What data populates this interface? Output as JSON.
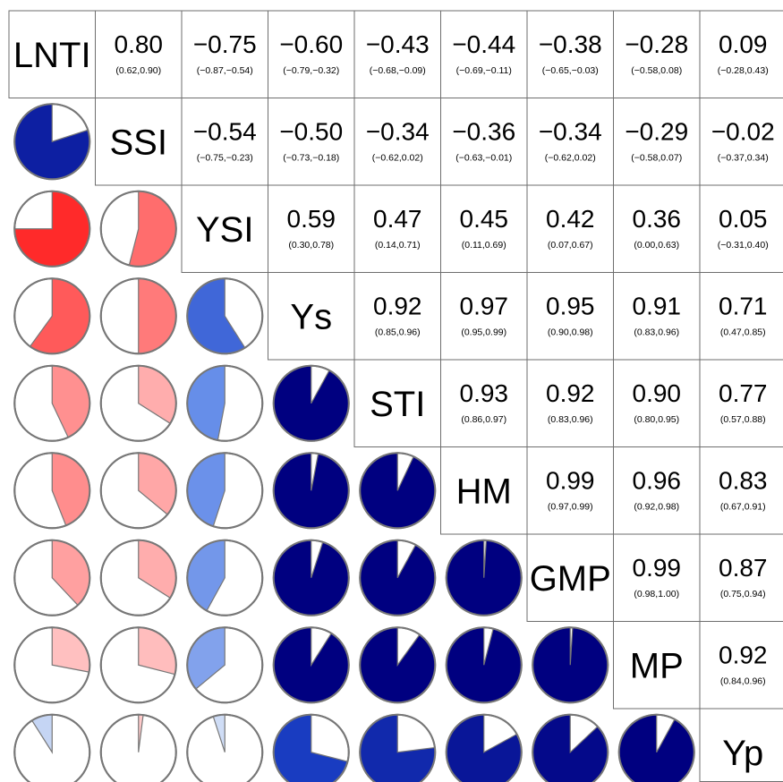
{
  "chart_data": {
    "type": "heatmap",
    "variables": [
      "LNTI",
      "SSI",
      "YSI",
      "Ys",
      "STI",
      "HM",
      "GMP",
      "MP",
      "Yp"
    ],
    "upper_panel": "correlation coefficient with 95% confidence interval",
    "lower_panel": "pie filled in proportion to |r|; blue = positive, red = negative",
    "colors": {
      "strong_positive": "#000080",
      "moderate_positive": "#1a3fc4",
      "weak_positive": "#dbe6f7",
      "strong_negative": "#ff1a1a",
      "weak_negative": "#ffcaca",
      "cell_border": "#6e6e6e"
    },
    "correlations": [
      {
        "row": "LNTI",
        "col": "SSI",
        "r": 0.8,
        "r_label": "0.80",
        "ci": "(0.62,0.90)"
      },
      {
        "row": "LNTI",
        "col": "YSI",
        "r": -0.75,
        "r_label": "−0.75",
        "ci": "(−0.87,−0.54)"
      },
      {
        "row": "LNTI",
        "col": "Ys",
        "r": -0.6,
        "r_label": "−0.60",
        "ci": "(−0.79,−0.32)"
      },
      {
        "row": "LNTI",
        "col": "STI",
        "r": -0.43,
        "r_label": "−0.43",
        "ci": "(−0.68,−0.09)"
      },
      {
        "row": "LNTI",
        "col": "HM",
        "r": -0.44,
        "r_label": "−0.44",
        "ci": "(−0.69,−0.11)"
      },
      {
        "row": "LNTI",
        "col": "GMP",
        "r": -0.38,
        "r_label": "−0.38",
        "ci": "(−0.65,−0.03)"
      },
      {
        "row": "LNTI",
        "col": "MP",
        "r": -0.28,
        "r_label": "−0.28",
        "ci": "(−0.58,0.08)"
      },
      {
        "row": "LNTI",
        "col": "Yp",
        "r": 0.09,
        "r_label": "0.09",
        "ci": "(−0.28,0.43)"
      },
      {
        "row": "SSI",
        "col": "YSI",
        "r": -0.54,
        "r_label": "−0.54",
        "ci": "(−0.75,−0.23)"
      },
      {
        "row": "SSI",
        "col": "Ys",
        "r": -0.5,
        "r_label": "−0.50",
        "ci": "(−0.73,−0.18)"
      },
      {
        "row": "SSI",
        "col": "STI",
        "r": -0.34,
        "r_label": "−0.34",
        "ci": "(−0.62,0.02)"
      },
      {
        "row": "SSI",
        "col": "HM",
        "r": -0.36,
        "r_label": "−0.36",
        "ci": "(−0.63,−0.01)"
      },
      {
        "row": "SSI",
        "col": "GMP",
        "r": -0.34,
        "r_label": "−0.34",
        "ci": "(−0.62,0.02)"
      },
      {
        "row": "SSI",
        "col": "MP",
        "r": -0.29,
        "r_label": "−0.29",
        "ci": "(−0.58,0.07)"
      },
      {
        "row": "SSI",
        "col": "Yp",
        "r": -0.02,
        "r_label": "−0.02",
        "ci": "(−0.37,0.34)"
      },
      {
        "row": "YSI",
        "col": "Ys",
        "r": 0.59,
        "r_label": "0.59",
        "ci": "(0.30,0.78)"
      },
      {
        "row": "YSI",
        "col": "STI",
        "r": 0.47,
        "r_label": "0.47",
        "ci": "(0.14,0.71)"
      },
      {
        "row": "YSI",
        "col": "HM",
        "r": 0.45,
        "r_label": "0.45",
        "ci": "(0.11,0.69)"
      },
      {
        "row": "YSI",
        "col": "GMP",
        "r": 0.42,
        "r_label": "0.42",
        "ci": "(0.07,0.67)"
      },
      {
        "row": "YSI",
        "col": "MP",
        "r": 0.36,
        "r_label": "0.36",
        "ci": "(0.00,0.63)"
      },
      {
        "row": "YSI",
        "col": "Yp",
        "r": 0.05,
        "r_label": "0.05",
        "ci": "(−0.31,0.40)"
      },
      {
        "row": "Ys",
        "col": "STI",
        "r": 0.92,
        "r_label": "0.92",
        "ci": "(0.85,0.96)"
      },
      {
        "row": "Ys",
        "col": "HM",
        "r": 0.97,
        "r_label": "0.97",
        "ci": "(0.95,0.99)"
      },
      {
        "row": "Ys",
        "col": "GMP",
        "r": 0.95,
        "r_label": "0.95",
        "ci": "(0.90,0.98)"
      },
      {
        "row": "Ys",
        "col": "MP",
        "r": 0.91,
        "r_label": "0.91",
        "ci": "(0.83,0.96)"
      },
      {
        "row": "Ys",
        "col": "Yp",
        "r": 0.71,
        "r_label": "0.71",
        "ci": "(0.47,0.85)"
      },
      {
        "row": "STI",
        "col": "HM",
        "r": 0.93,
        "r_label": "0.93",
        "ci": "(0.86,0.97)"
      },
      {
        "row": "STI",
        "col": "GMP",
        "r": 0.92,
        "r_label": "0.92",
        "ci": "(0.83,0.96)"
      },
      {
        "row": "STI",
        "col": "MP",
        "r": 0.9,
        "r_label": "0.90",
        "ci": "(0.80,0.95)"
      },
      {
        "row": "STI",
        "col": "Yp",
        "r": 0.77,
        "r_label": "0.77",
        "ci": "(0.57,0.88)"
      },
      {
        "row": "HM",
        "col": "GMP",
        "r": 0.99,
        "r_label": "0.99",
        "ci": "(0.97,0.99)"
      },
      {
        "row": "HM",
        "col": "MP",
        "r": 0.96,
        "r_label": "0.96",
        "ci": "(0.92,0.98)"
      },
      {
        "row": "HM",
        "col": "Yp",
        "r": 0.83,
        "r_label": "0.83",
        "ci": "(0.67,0.91)"
      },
      {
        "row": "GMP",
        "col": "MP",
        "r": 0.99,
        "r_label": "0.99",
        "ci": "(0.98,1.00)"
      },
      {
        "row": "GMP",
        "col": "Yp",
        "r": 0.87,
        "r_label": "0.87",
        "ci": "(0.75,0.94)"
      },
      {
        "row": "MP",
        "col": "Yp",
        "r": 0.92,
        "r_label": "0.92",
        "ci": "(0.84,0.96)"
      }
    ]
  }
}
